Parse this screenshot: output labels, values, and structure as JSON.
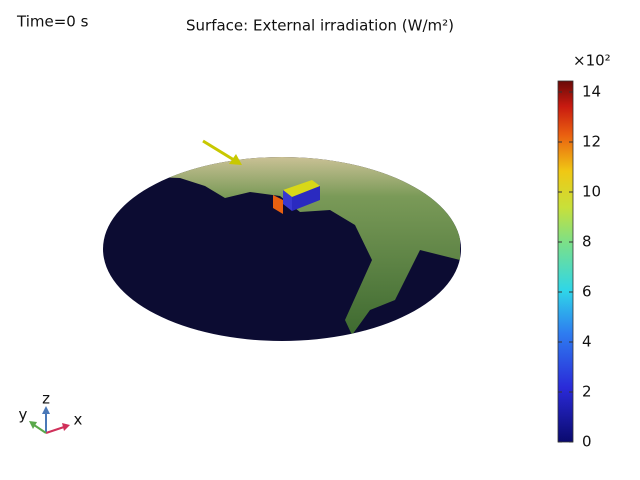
{
  "chart_data": {
    "type": "surface",
    "title": "Surface: External irradiation (W/m²)",
    "time_label": "Time=0 s",
    "colorbar": {
      "label": "×10²",
      "ylim": [
        0,
        14.44
      ],
      "yticks": [
        0,
        2,
        4,
        6,
        8,
        10,
        12,
        14
      ]
    },
    "axis_labels": {
      "x": "x",
      "y": "y",
      "z": "z"
    }
  }
}
